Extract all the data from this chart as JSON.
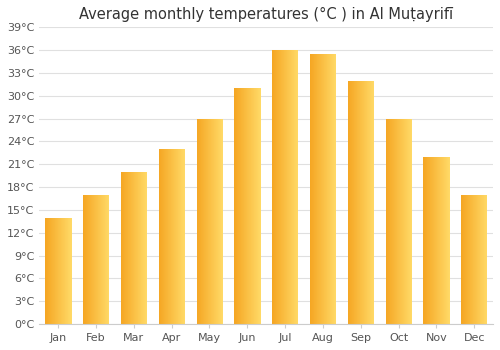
{
  "title": "Average monthly temperatures (°C ) in Al Muṭayrifī",
  "months": [
    "Jan",
    "Feb",
    "Mar",
    "Apr",
    "May",
    "Jun",
    "Jul",
    "Aug",
    "Sep",
    "Oct",
    "Nov",
    "Dec"
  ],
  "values": [
    14,
    17,
    20,
    23,
    27,
    31,
    36,
    35.5,
    32,
    27,
    22,
    17
  ],
  "ylim": [
    0,
    39
  ],
  "yticks": [
    0,
    3,
    6,
    9,
    12,
    15,
    18,
    21,
    24,
    27,
    30,
    33,
    36,
    39
  ],
  "ytick_labels": [
    "0°C",
    "3°C",
    "6°C",
    "9°C",
    "12°C",
    "15°C",
    "18°C",
    "21°C",
    "24°C",
    "27°C",
    "30°C",
    "33°C",
    "36°C",
    "39°C"
  ],
  "bar_color_left": "#F5A623",
  "bar_color_right": "#FFD966",
  "bar_edge_color": "none",
  "background_color": "#ffffff",
  "grid_color": "#e0e0e0",
  "title_fontsize": 10.5,
  "tick_fontsize": 8,
  "bar_width": 0.68
}
